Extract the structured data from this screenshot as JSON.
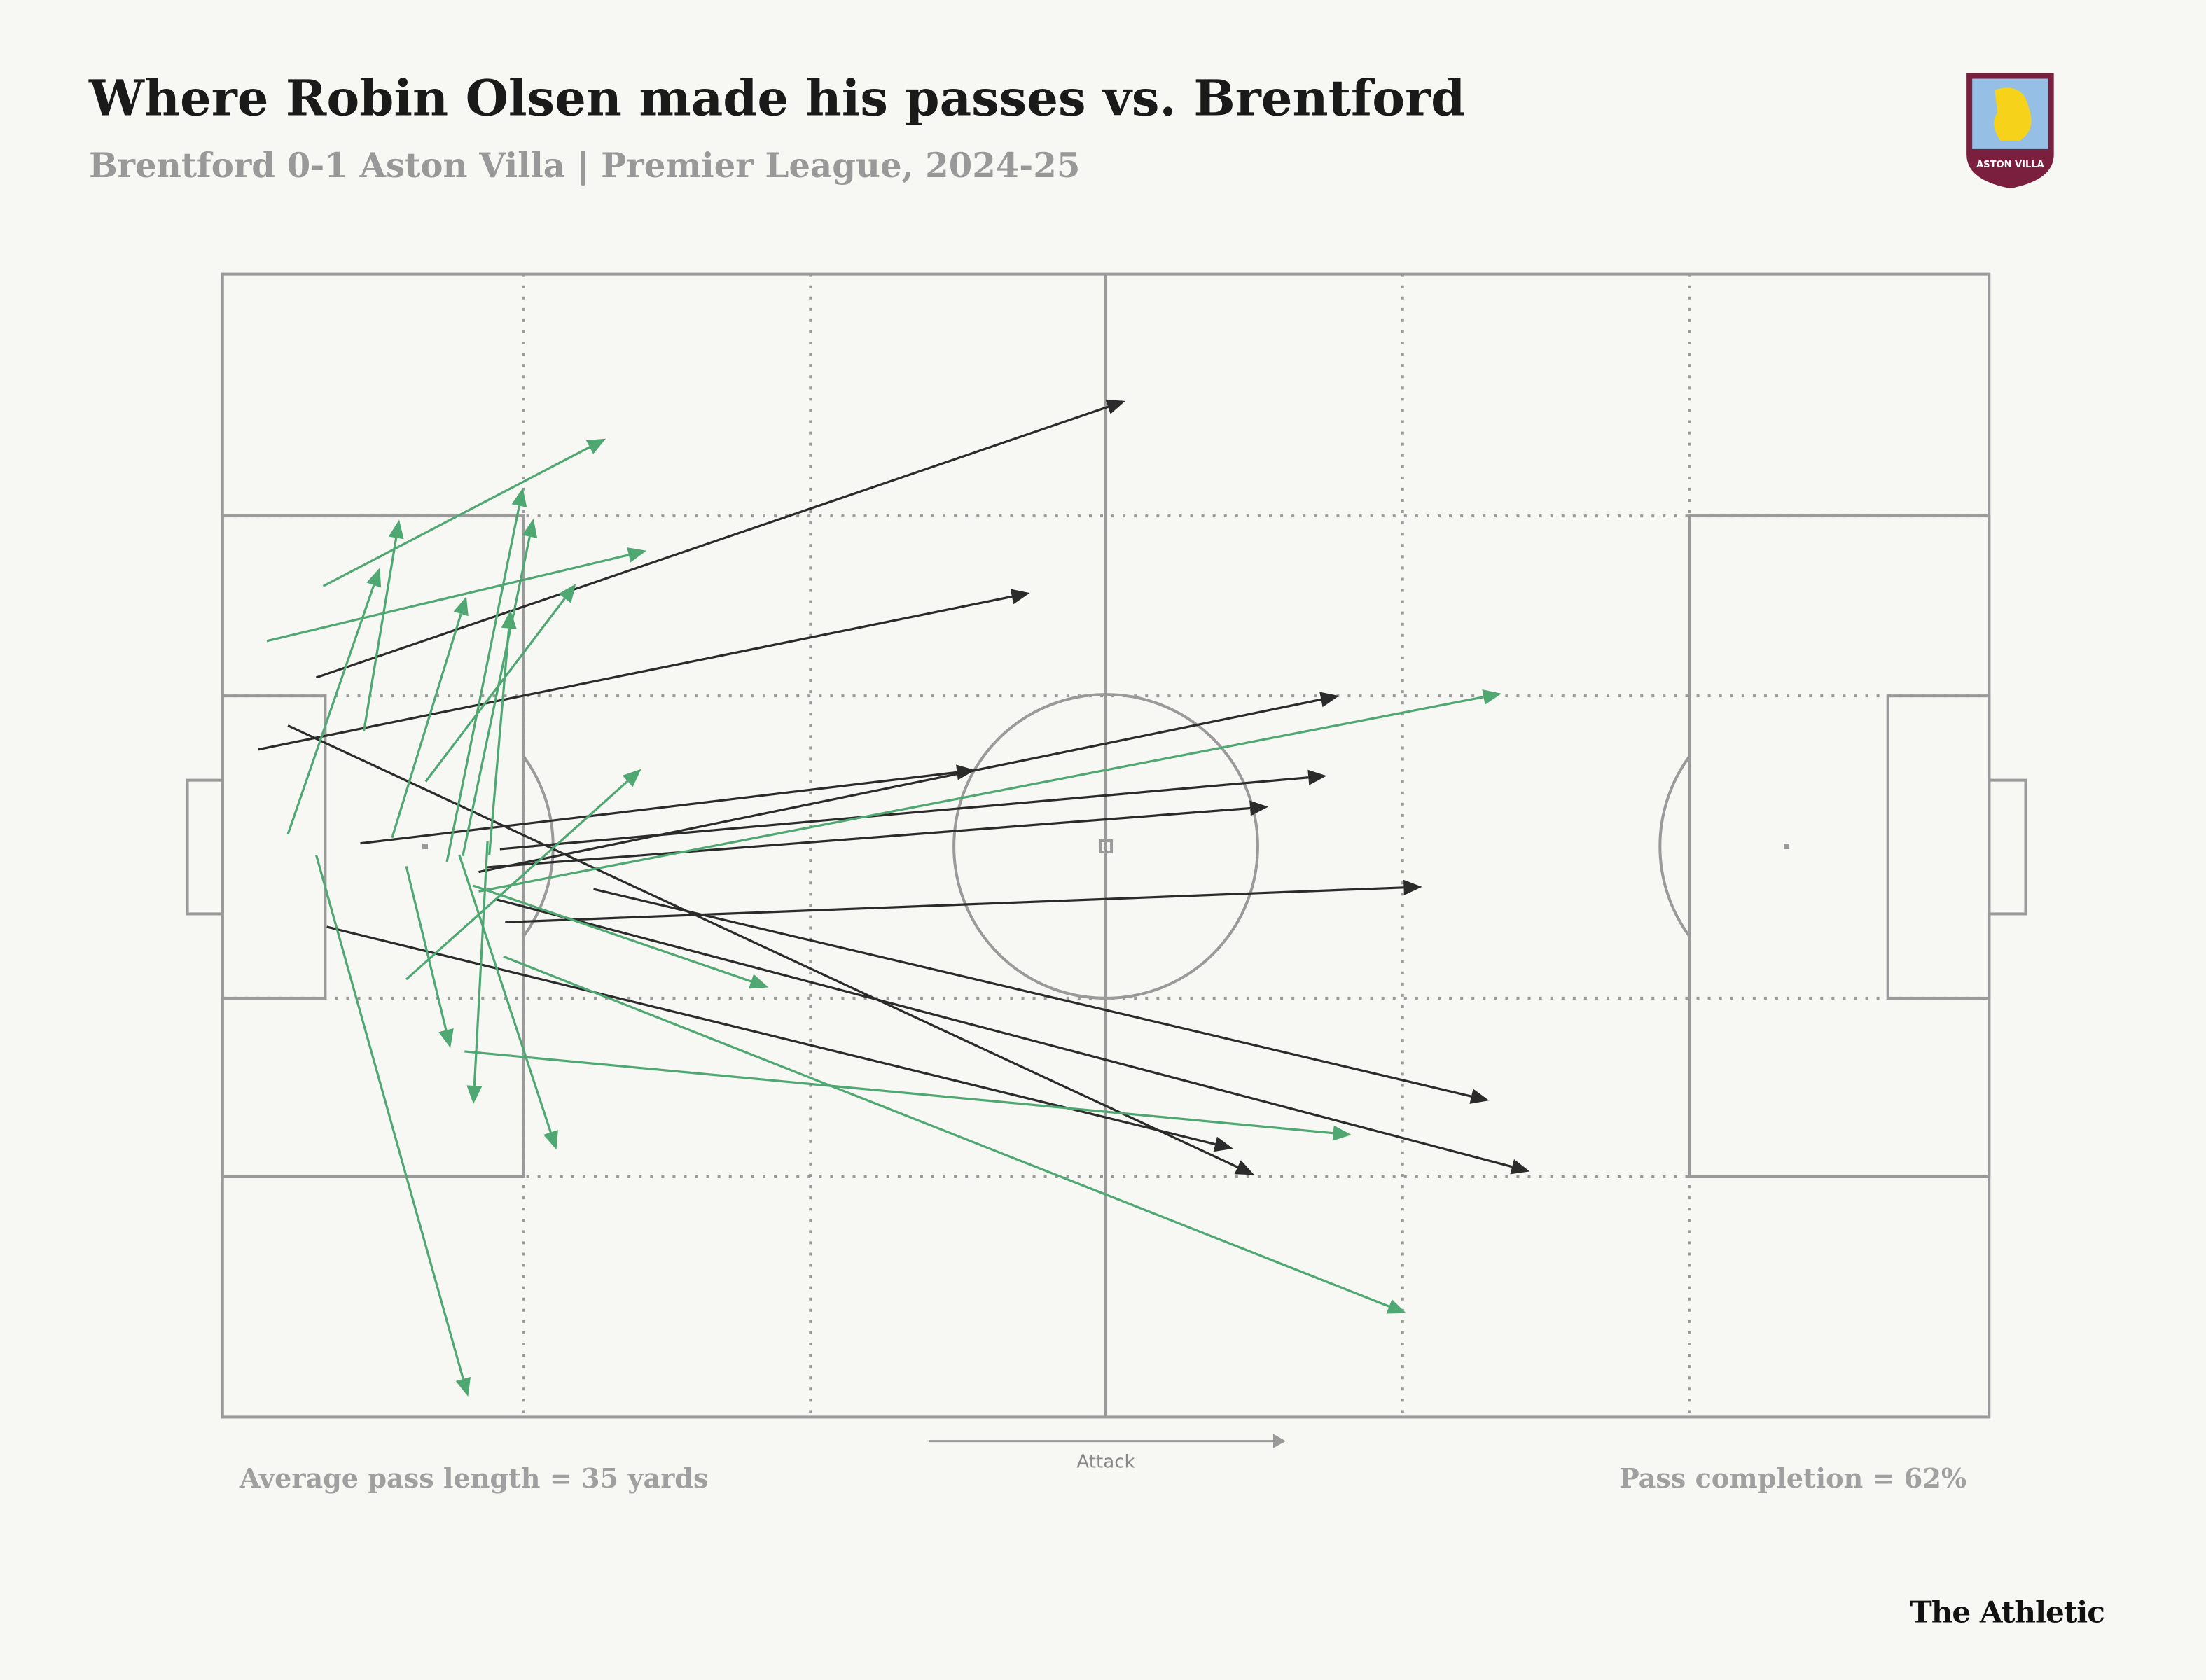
{
  "header": {
    "title": "Where Robin Olsen made his passes vs. Brentford",
    "subtitle": "Brentford 0-1 Aston Villa | Premier League, 2024-25",
    "badge_text": "ASTON VILLA"
  },
  "chart_data": {
    "type": "pass-map",
    "xlim": [
      0,
      100
    ],
    "ylim": [
      0,
      100
    ],
    "direction_label": "Attack",
    "passes": [
      {
        "x": 5.3,
        "y": 35.3,
        "end_x": 51.1,
        "end_y": 11.1,
        "color": "#2b2b2b"
      },
      {
        "x": 2.0,
        "y": 41.6,
        "end_x": 45.7,
        "end_y": 27.9,
        "color": "#2b2b2b"
      },
      {
        "x": 7.8,
        "y": 49.8,
        "end_x": 42.6,
        "end_y": 43.4,
        "color": "#2b2b2b"
      },
      {
        "x": 14.5,
        "y": 52.3,
        "end_x": 63.2,
        "end_y": 36.9,
        "color": "#2b2b2b"
      },
      {
        "x": 15.7,
        "y": 50.3,
        "end_x": 62.5,
        "end_y": 43.9,
        "color": "#2b2b2b"
      },
      {
        "x": 14.9,
        "y": 51.9,
        "end_x": 59.2,
        "end_y": 46.6,
        "color": "#2b2b2b"
      },
      {
        "x": 16.0,
        "y": 56.7,
        "end_x": 67.9,
        "end_y": 53.6,
        "color": "#2b2b2b"
      },
      {
        "x": 3.7,
        "y": 39.5,
        "end_x": 58.4,
        "end_y": 78.8,
        "color": "#2b2b2b"
      },
      {
        "x": 5.9,
        "y": 57.1,
        "end_x": 57.2,
        "end_y": 76.5,
        "color": "#2b2b2b"
      },
      {
        "x": 15.5,
        "y": 54.7,
        "end_x": 74.0,
        "end_y": 78.5,
        "color": "#2b2b2b"
      },
      {
        "x": 21.0,
        "y": 53.8,
        "end_x": 71.7,
        "end_y": 72.3,
        "color": "#2b2b2b"
      },
      {
        "x": 5.7,
        "y": 27.3,
        "end_x": 21.7,
        "end_y": 14.4,
        "color": "#4fa872"
      },
      {
        "x": 2.5,
        "y": 32.1,
        "end_x": 24.0,
        "end_y": 24.2,
        "color": "#4fa872"
      },
      {
        "x": 8.0,
        "y": 40.0,
        "end_x": 10.0,
        "end_y": 21.5,
        "color": "#4fa872"
      },
      {
        "x": 3.7,
        "y": 49.0,
        "end_x": 8.9,
        "end_y": 25.7,
        "color": "#4fa872"
      },
      {
        "x": 9.6,
        "y": 49.3,
        "end_x": 13.8,
        "end_y": 28.2,
        "color": "#4fa872"
      },
      {
        "x": 12.7,
        "y": 51.4,
        "end_x": 17.0,
        "end_y": 18.7,
        "color": "#4fa872"
      },
      {
        "x": 13.6,
        "y": 50.9,
        "end_x": 17.6,
        "end_y": 21.4,
        "color": "#4fa872"
      },
      {
        "x": 15.1,
        "y": 50.8,
        "end_x": 16.3,
        "end_y": 29.4,
        "color": "#4fa872"
      },
      {
        "x": 11.5,
        "y": 44.4,
        "end_x": 20.0,
        "end_y": 27.1,
        "color": "#4fa872"
      },
      {
        "x": 14.5,
        "y": 54.0,
        "end_x": 72.4,
        "end_y": 36.7,
        "color": "#4fa872"
      },
      {
        "x": 10.4,
        "y": 61.7,
        "end_x": 23.7,
        "end_y": 43.3,
        "color": "#4fa872"
      },
      {
        "x": 14.2,
        "y": 53.5,
        "end_x": 30.9,
        "end_y": 62.4,
        "color": "#4fa872"
      },
      {
        "x": 10.4,
        "y": 51.8,
        "end_x": 12.9,
        "end_y": 67.7,
        "color": "#4fa872"
      },
      {
        "x": 15.0,
        "y": 49.6,
        "end_x": 14.2,
        "end_y": 72.6,
        "color": "#4fa872"
      },
      {
        "x": 13.4,
        "y": 50.8,
        "end_x": 18.9,
        "end_y": 76.6,
        "color": "#4fa872"
      },
      {
        "x": 13.7,
        "y": 68.0,
        "end_x": 63.9,
        "end_y": 75.3,
        "color": "#4fa872"
      },
      {
        "x": 15.9,
        "y": 59.7,
        "end_x": 67.0,
        "end_y": 90.9,
        "color": "#4fa872"
      },
      {
        "x": 5.3,
        "y": 50.8,
        "end_x": 13.9,
        "end_y": 98.2,
        "color": "#4fa872"
      }
    ]
  },
  "footer": {
    "left": "Average pass length = 35 yards",
    "right": "Pass completion = 62%",
    "brand": "The Athletic"
  }
}
